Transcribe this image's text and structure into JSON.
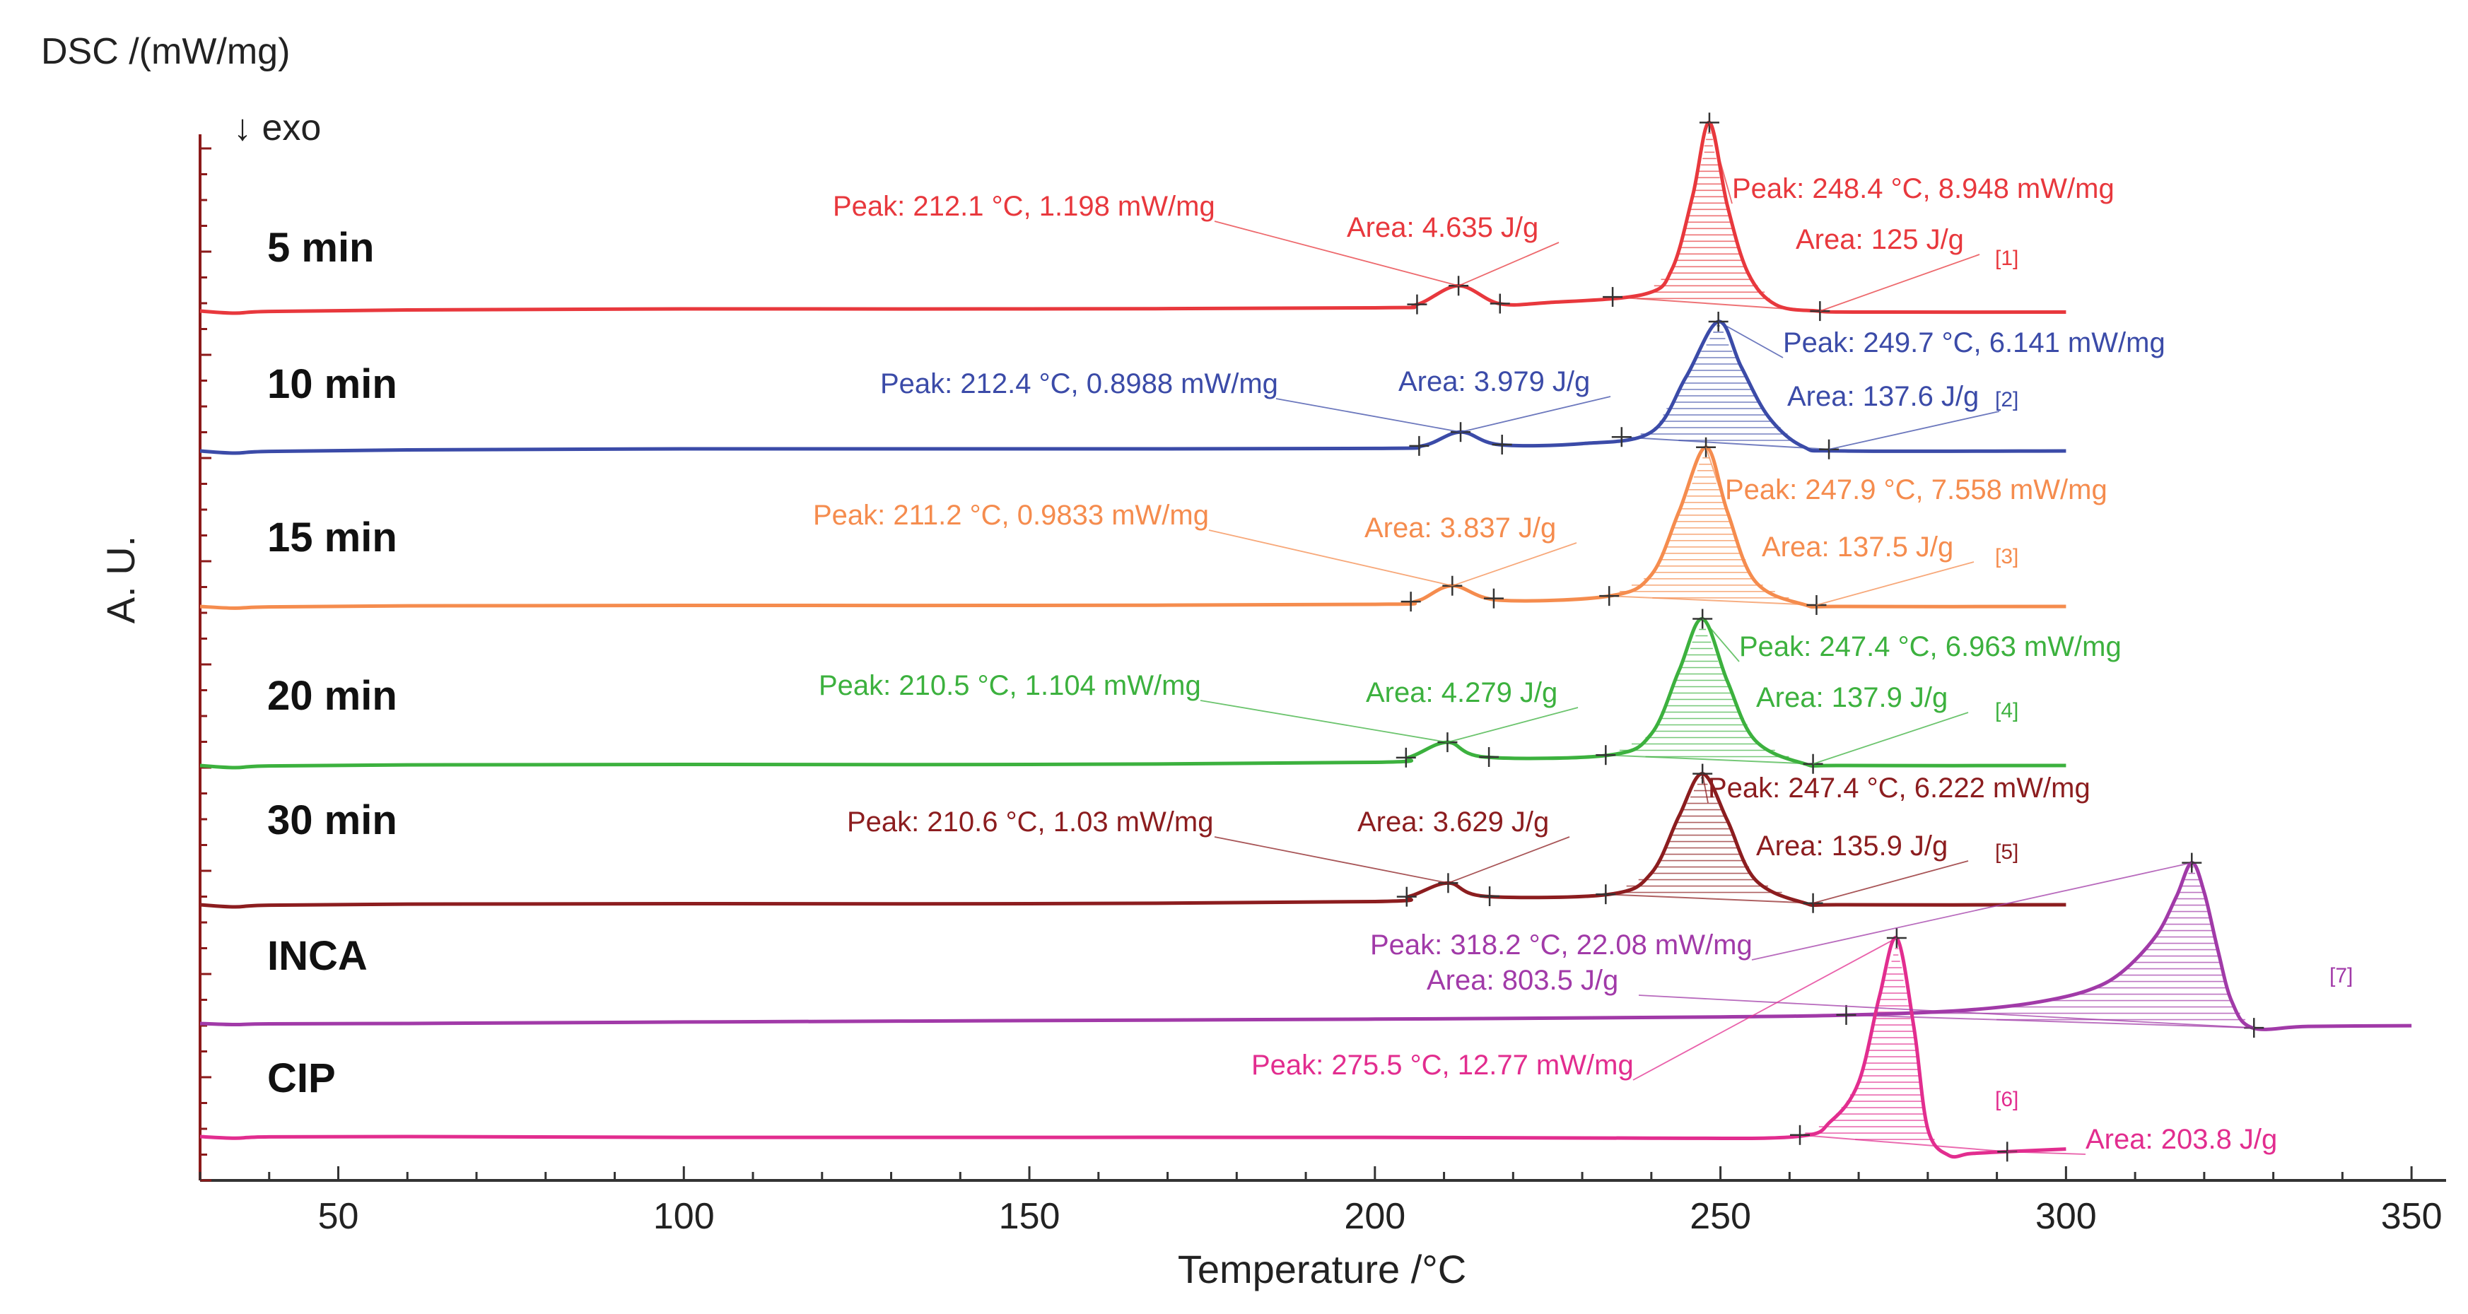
{
  "chart_data": {
    "type": "line",
    "ylabel_top": "DSC /(mW/mg)",
    "exo_label": "↓ exo",
    "ylabel_side": "A. U.",
    "xlabel": "Temperature /°C",
    "xlim": [
      30,
      355
    ],
    "xticks": [
      50,
      100,
      150,
      200,
      250,
      300,
      350
    ],
    "series": [
      {
        "name": "5 min",
        "color": "#e8383d",
        "index_label": "[1]",
        "x": [
          30,
          35,
          40,
          60,
          100,
          150,
          200,
          206,
          212.1,
          218,
          225,
          239,
          243,
          246,
          248.4,
          251,
          254,
          258,
          264,
          270,
          300
        ],
        "y": [
          0.0,
          -0.1,
          -0.02,
          0.05,
          0.1,
          0.1,
          0.15,
          0.3,
          1.198,
          0.35,
          0.4,
          0.8,
          2.0,
          5.5,
          8.948,
          5.0,
          1.8,
          0.3,
          0.0,
          -0.05,
          -0.05
        ],
        "annotations": [
          {
            "text": "Peak: 212.1 °C, 1.198 mW/mg"
          },
          {
            "text": "Area: 4.635 J/g"
          },
          {
            "text": "Peak: 248.4 °C, 8.948 mW/mg"
          },
          {
            "text": "Area: 125 J/g"
          }
        ]
      },
      {
        "name": "10 min",
        "color": "#3b4ba8",
        "index_label": "[2]",
        "x": [
          30,
          35,
          40,
          60,
          100,
          150,
          200,
          207,
          212.4,
          218,
          230,
          240,
          245,
          249.7,
          253,
          257,
          262,
          268,
          300
        ],
        "y": [
          0.0,
          -0.1,
          -0.02,
          0.05,
          0.1,
          0.1,
          0.12,
          0.25,
          0.8988,
          0.3,
          0.35,
          0.9,
          3.5,
          6.141,
          4.0,
          1.6,
          0.2,
          0.0,
          0.0
        ],
        "annotations": [
          {
            "text": "Peak: 212.4 °C, 0.8988 mW/mg"
          },
          {
            "text": "Area: 3.979 J/g"
          },
          {
            "text": "Peak: 249.7 °C, 6.141 mW/mg"
          },
          {
            "text": "Area: 137.6 J/g"
          }
        ]
      },
      {
        "name": "15 min",
        "color": "#f58c4e",
        "index_label": "[3]",
        "x": [
          30,
          35,
          40,
          60,
          100,
          150,
          200,
          206,
          211.2,
          218,
          234,
          240,
          244,
          247.9,
          251,
          255,
          262,
          268,
          300
        ],
        "y": [
          0.0,
          -0.08,
          -0.02,
          0.03,
          0.05,
          0.05,
          0.1,
          0.25,
          0.9833,
          0.3,
          0.5,
          1.5,
          4.5,
          7.558,
          4.5,
          1.2,
          0.1,
          0.0,
          0.0
        ],
        "annotations": [
          {
            "text": "Peak: 211.2 °C, 0.9833 mW/mg"
          },
          {
            "text": "Area: 3.837 J/g"
          },
          {
            "text": "Peak: 247.9 °C, 7.558 mW/mg"
          },
          {
            "text": "Area: 137.5 J/g"
          }
        ]
      },
      {
        "name": "20 min",
        "color": "#3cb13e",
        "index_label": "[4]",
        "x": [
          30,
          35,
          40,
          60,
          100,
          150,
          200,
          205,
          210.5,
          216,
          234,
          240,
          244,
          247.4,
          251,
          255,
          262,
          268,
          300
        ],
        "y": [
          0.0,
          -0.1,
          -0.02,
          0.03,
          0.05,
          0.05,
          0.15,
          0.4,
          1.104,
          0.4,
          0.5,
          1.5,
          4.5,
          6.963,
          4.0,
          1.2,
          0.1,
          0.0,
          0.0
        ],
        "annotations": [
          {
            "text": "Peak: 210.5 °C, 1.104 mW/mg"
          },
          {
            "text": "Area: 4.279 J/g"
          },
          {
            "text": "Peak: 247.4 °C, 6.963 mW/mg"
          },
          {
            "text": "Area: 137.9 J/g"
          }
        ]
      },
      {
        "name": "30 min",
        "color": "#8c1d1f",
        "index_label": "[5]",
        "x": [
          30,
          35,
          40,
          60,
          100,
          150,
          200,
          205,
          210.6,
          216,
          234,
          240,
          244,
          247.4,
          251,
          255,
          262,
          268,
          300
        ],
        "y": [
          0.0,
          -0.1,
          -0.02,
          0.03,
          0.05,
          0.05,
          0.15,
          0.4,
          1.03,
          0.4,
          0.5,
          1.5,
          4.2,
          6.222,
          4.0,
          1.2,
          0.1,
          0.0,
          0.0
        ],
        "annotations": [
          {
            "text": "Peak: 210.6 °C, 1.03 mW/mg"
          },
          {
            "text": "Area: 3.629 J/g"
          },
          {
            "text": "Peak: 247.4 °C, 6.222 mW/mg"
          },
          {
            "text": "Area: 135.9 J/g"
          }
        ]
      },
      {
        "name": "INCA",
        "color": "#a13aa8",
        "index_label": "[7]",
        "x": [
          30,
          35,
          40,
          60,
          100,
          150,
          200,
          250,
          270,
          285,
          295,
          303,
          308,
          313,
          316,
          318.2,
          320,
          322,
          324,
          327,
          335,
          350
        ],
        "y": [
          0.0,
          -0.15,
          -0.05,
          0.0,
          0.2,
          0.4,
          0.6,
          0.9,
          1.2,
          1.8,
          2.8,
          4.5,
          7.0,
          12.0,
          17.5,
          22.08,
          18.0,
          10.0,
          3.0,
          -0.6,
          -0.4,
          -0.3
        ],
        "annotations": [
          {
            "text": "Peak: 318.2 °C, 22.08 mW/mg"
          },
          {
            "text": "Area: 803.5 J/g"
          }
        ]
      },
      {
        "name": "CIP",
        "color": "#e22d8f",
        "index_label": "[6]",
        "x": [
          30,
          35,
          40,
          60,
          100,
          150,
          200,
          240,
          261,
          266,
          270,
          273,
          275.5,
          278,
          280,
          283,
          286,
          290,
          300
        ],
        "y": [
          0.0,
          -0.1,
          -0.02,
          0.0,
          -0.05,
          -0.05,
          -0.05,
          -0.1,
          0.0,
          1.0,
          3.5,
          9.0,
          12.77,
          7.0,
          0.5,
          -1.2,
          -1.1,
          -1.0,
          -0.8
        ],
        "annotations": [
          {
            "text": "Peak: 275.5 °C, 12.77 mW/mg"
          },
          {
            "text": "Area: 203.8 J/g"
          }
        ]
      }
    ]
  }
}
